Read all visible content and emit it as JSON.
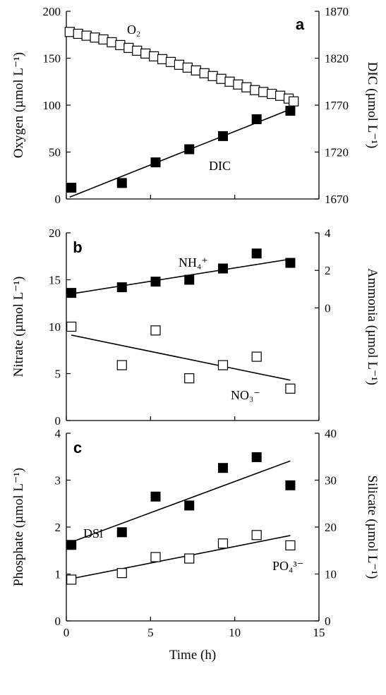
{
  "chart_data": [
    {
      "type": "scatter",
      "panel": "a",
      "xlim": [
        0,
        15
      ],
      "ylim_left": [
        0,
        200
      ],
      "ylim_right": [
        1670,
        1870
      ],
      "left_ticks": [
        "0",
        "50",
        "100",
        "150",
        "200"
      ],
      "right_ticks": [
        "1670",
        "1720",
        "1770",
        "1820",
        "1870"
      ],
      "ylabel_left": "Oxygen (µmol L⁻¹)",
      "ylabel_right": "DIC (µmol L⁻¹)",
      "series": [
        {
          "name": "O₂",
          "axis": "left",
          "marker": "open-square",
          "x": [
            0.2,
            0.7,
            1.2,
            1.7,
            2.2,
            2.7,
            3.2,
            3.7,
            4.2,
            4.7,
            5.2,
            5.7,
            6.2,
            6.7,
            7.2,
            7.7,
            8.2,
            8.7,
            9.2,
            9.7,
            10.2,
            10.7,
            11.2,
            11.7,
            12.2,
            12.7,
            13.2,
            13.5
          ],
          "y": [
            178,
            176,
            174,
            172,
            170,
            167,
            164,
            161,
            158,
            155,
            152,
            149,
            146,
            143,
            140,
            137,
            134,
            131,
            128,
            125,
            122,
            119,
            116,
            114,
            112,
            110,
            107,
            104
          ],
          "fit": [
            [
              0.2,
              178
            ],
            [
              13.5,
              104
            ]
          ]
        },
        {
          "name": "DIC",
          "axis": "right",
          "marker": "filled-square",
          "x": [
            0.3,
            3.3,
            5.3,
            7.3,
            9.3,
            11.3,
            13.3
          ],
          "y": [
            1682,
            1687,
            1709,
            1723,
            1737,
            1755,
            1764
          ],
          "fit": [
            [
              0.2,
              1672
            ],
            [
              13.5,
              1767
            ]
          ]
        }
      ]
    },
    {
      "type": "scatter",
      "panel": "b",
      "xlim": [
        0,
        15
      ],
      "ylim_left": [
        0,
        20
      ],
      "ylim_right": [
        -6,
        4
      ],
      "left_ticks": [
        "0",
        "5",
        "10",
        "15",
        "20"
      ],
      "right_ticks": [
        "0",
        "2",
        "4"
      ],
      "ylabel_left": "Nitrate (µmol L⁻¹)",
      "ylabel_right": "Ammonia (µmol L⁻¹)",
      "series": [
        {
          "name": "NH₄⁺",
          "axis": "right",
          "marker": "filled-square",
          "x": [
            0.3,
            3.3,
            5.3,
            7.3,
            9.3,
            11.3,
            13.3
          ],
          "y": [
            0.8,
            1.1,
            1.4,
            1.5,
            2.1,
            2.9,
            2.4
          ],
          "fit": [
            [
              0.3,
              0.75
            ],
            [
              13.3,
              2.6
            ]
          ]
        },
        {
          "name": "NO₃⁻",
          "axis": "left",
          "marker": "open-square",
          "x": [
            0.3,
            3.3,
            5.3,
            7.3,
            9.3,
            11.3,
            13.3
          ],
          "y": [
            10.0,
            5.9,
            9.6,
            4.5,
            5.9,
            6.8,
            3.4
          ],
          "fit": [
            [
              0.3,
              9.1
            ],
            [
              13.3,
              4.3
            ]
          ]
        }
      ]
    },
    {
      "type": "scatter",
      "panel": "c",
      "xlim": [
        0,
        15
      ],
      "ylim_left": [
        0,
        4
      ],
      "ylim_right": [
        0,
        40
      ],
      "left_ticks": [
        "0",
        "1",
        "2",
        "3",
        "4"
      ],
      "right_ticks": [
        "0",
        "10",
        "20",
        "30",
        "40"
      ],
      "xticks": [
        "0",
        "5",
        "10",
        "15"
      ],
      "xlabel": "Time (h)",
      "ylabel_left": "Phosphate (µmol L⁻¹)",
      "ylabel_right": "Silicate (µmol L⁻¹)",
      "series": [
        {
          "name": "DSi",
          "axis": "right",
          "marker": "filled-square",
          "x": [
            0.3,
            3.3,
            5.3,
            7.3,
            9.3,
            11.3,
            13.3
          ],
          "y": [
            16.2,
            18.9,
            26.5,
            24.6,
            32.6,
            34.9,
            28.9
          ],
          "fit": [
            [
              0.3,
              16.8
            ],
            [
              13.3,
              34.1
            ]
          ]
        },
        {
          "name": "PO₄³⁻",
          "axis": "left",
          "marker": "open-square",
          "x": [
            0.3,
            3.3,
            5.3,
            7.3,
            9.3,
            11.3,
            13.3
          ],
          "y": [
            0.88,
            1.02,
            1.36,
            1.33,
            1.65,
            1.83,
            1.61
          ],
          "fit": [
            [
              0.3,
              0.9
            ],
            [
              13.3,
              1.82
            ]
          ]
        }
      ]
    }
  ]
}
